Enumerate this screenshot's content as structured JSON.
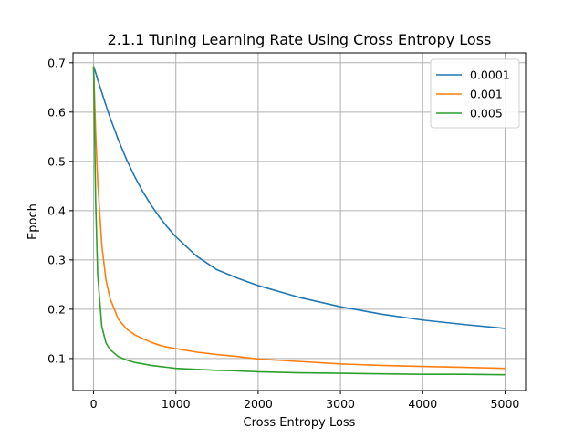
{
  "chart_data": {
    "type": "line",
    "title": "2.1.1 Tuning Learning Rate Using Cross Entropy Loss",
    "xlabel": "Cross Entropy Loss",
    "ylabel": "Epoch",
    "xlim": [
      -250,
      5250
    ],
    "ylim": [
      0.035,
      0.72
    ],
    "xticks": [
      0,
      1000,
      2000,
      3000,
      4000,
      5000
    ],
    "yticks": [
      0.1,
      0.2,
      0.3,
      0.4,
      0.5,
      0.6,
      0.7
    ],
    "grid": true,
    "legend_position": "top-right",
    "x": [
      0,
      25,
      50,
      100,
      150,
      200,
      300,
      400,
      500,
      600,
      700,
      800,
      900,
      1000,
      1250,
      1500,
      1750,
      2000,
      2500,
      3000,
      3500,
      4000,
      4500,
      5000
    ],
    "series": [
      {
        "name": "0.0001",
        "color": "#1f77b4",
        "values": [
          0.693,
          0.68,
          0.666,
          0.64,
          0.614,
          0.589,
          0.544,
          0.504,
          0.469,
          0.438,
          0.411,
          0.387,
          0.366,
          0.347,
          0.308,
          0.28,
          0.263,
          0.248,
          0.224,
          0.205,
          0.19,
          0.178,
          0.169,
          0.161
        ]
      },
      {
        "name": "0.001",
        "color": "#ff7f0e",
        "values": [
          0.693,
          0.56,
          0.46,
          0.33,
          0.26,
          0.222,
          0.18,
          0.16,
          0.148,
          0.14,
          0.133,
          0.127,
          0.123,
          0.12,
          0.113,
          0.108,
          0.104,
          0.099,
          0.094,
          0.089,
          0.086,
          0.084,
          0.082,
          0.08
        ]
      },
      {
        "name": "0.005",
        "color": "#2ca02c",
        "values": [
          0.693,
          0.42,
          0.27,
          0.165,
          0.132,
          0.118,
          0.104,
          0.097,
          0.092,
          0.089,
          0.086,
          0.084,
          0.082,
          0.08,
          0.078,
          0.076,
          0.075,
          0.073,
          0.071,
          0.07,
          0.069,
          0.068,
          0.068,
          0.067
        ]
      }
    ]
  }
}
